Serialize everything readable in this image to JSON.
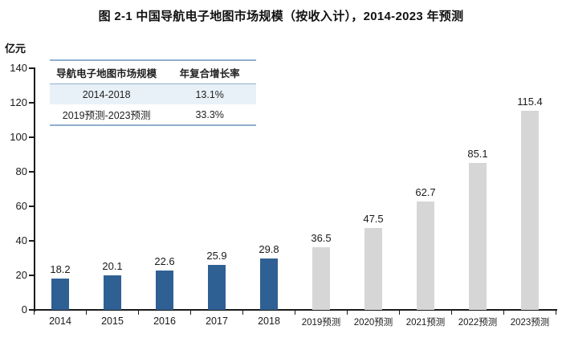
{
  "title": "图 2-1 中国导航电子地图市场规模（按收入计），2014-2023 年预测",
  "y_unit_label": "亿元",
  "legend_table": {
    "headers": [
      "导航电子地图市场规模",
      "年复合增长率"
    ],
    "rows": [
      {
        "period": "2014-2018",
        "cagr": "13.1%",
        "highlight": true
      },
      {
        "period": "2019预测-2023预测",
        "cagr": "33.3%",
        "highlight": false
      }
    ]
  },
  "colors": {
    "actual_bar": "#2F6094",
    "forecast_bar": "#D6D6D6",
    "axis": "#1a1a1a",
    "table_border": "#8FAECE",
    "table_row_highlight": "#E9F1F8"
  },
  "chart_data": {
    "type": "bar",
    "title": "图 2-1 中国导航电子地图市场规模（按收入计），2014-2023 年预测",
    "xlabel": "",
    "ylabel": "亿元",
    "ylim": [
      0,
      140
    ],
    "ytick_step": 20,
    "grid": false,
    "legend_position": "none",
    "categories": [
      "2014",
      "2015",
      "2016",
      "2017",
      "2018",
      "2019预测",
      "2020预测",
      "2021预测",
      "2022预测",
      "2023预测"
    ],
    "values": [
      18.2,
      20.1,
      22.6,
      25.9,
      29.8,
      36.5,
      47.5,
      62.7,
      85.1,
      115.4
    ],
    "groups": [
      "actual",
      "actual",
      "actual",
      "actual",
      "actual",
      "forecast",
      "forecast",
      "forecast",
      "forecast",
      "forecast"
    ],
    "value_labels_shown": true
  }
}
